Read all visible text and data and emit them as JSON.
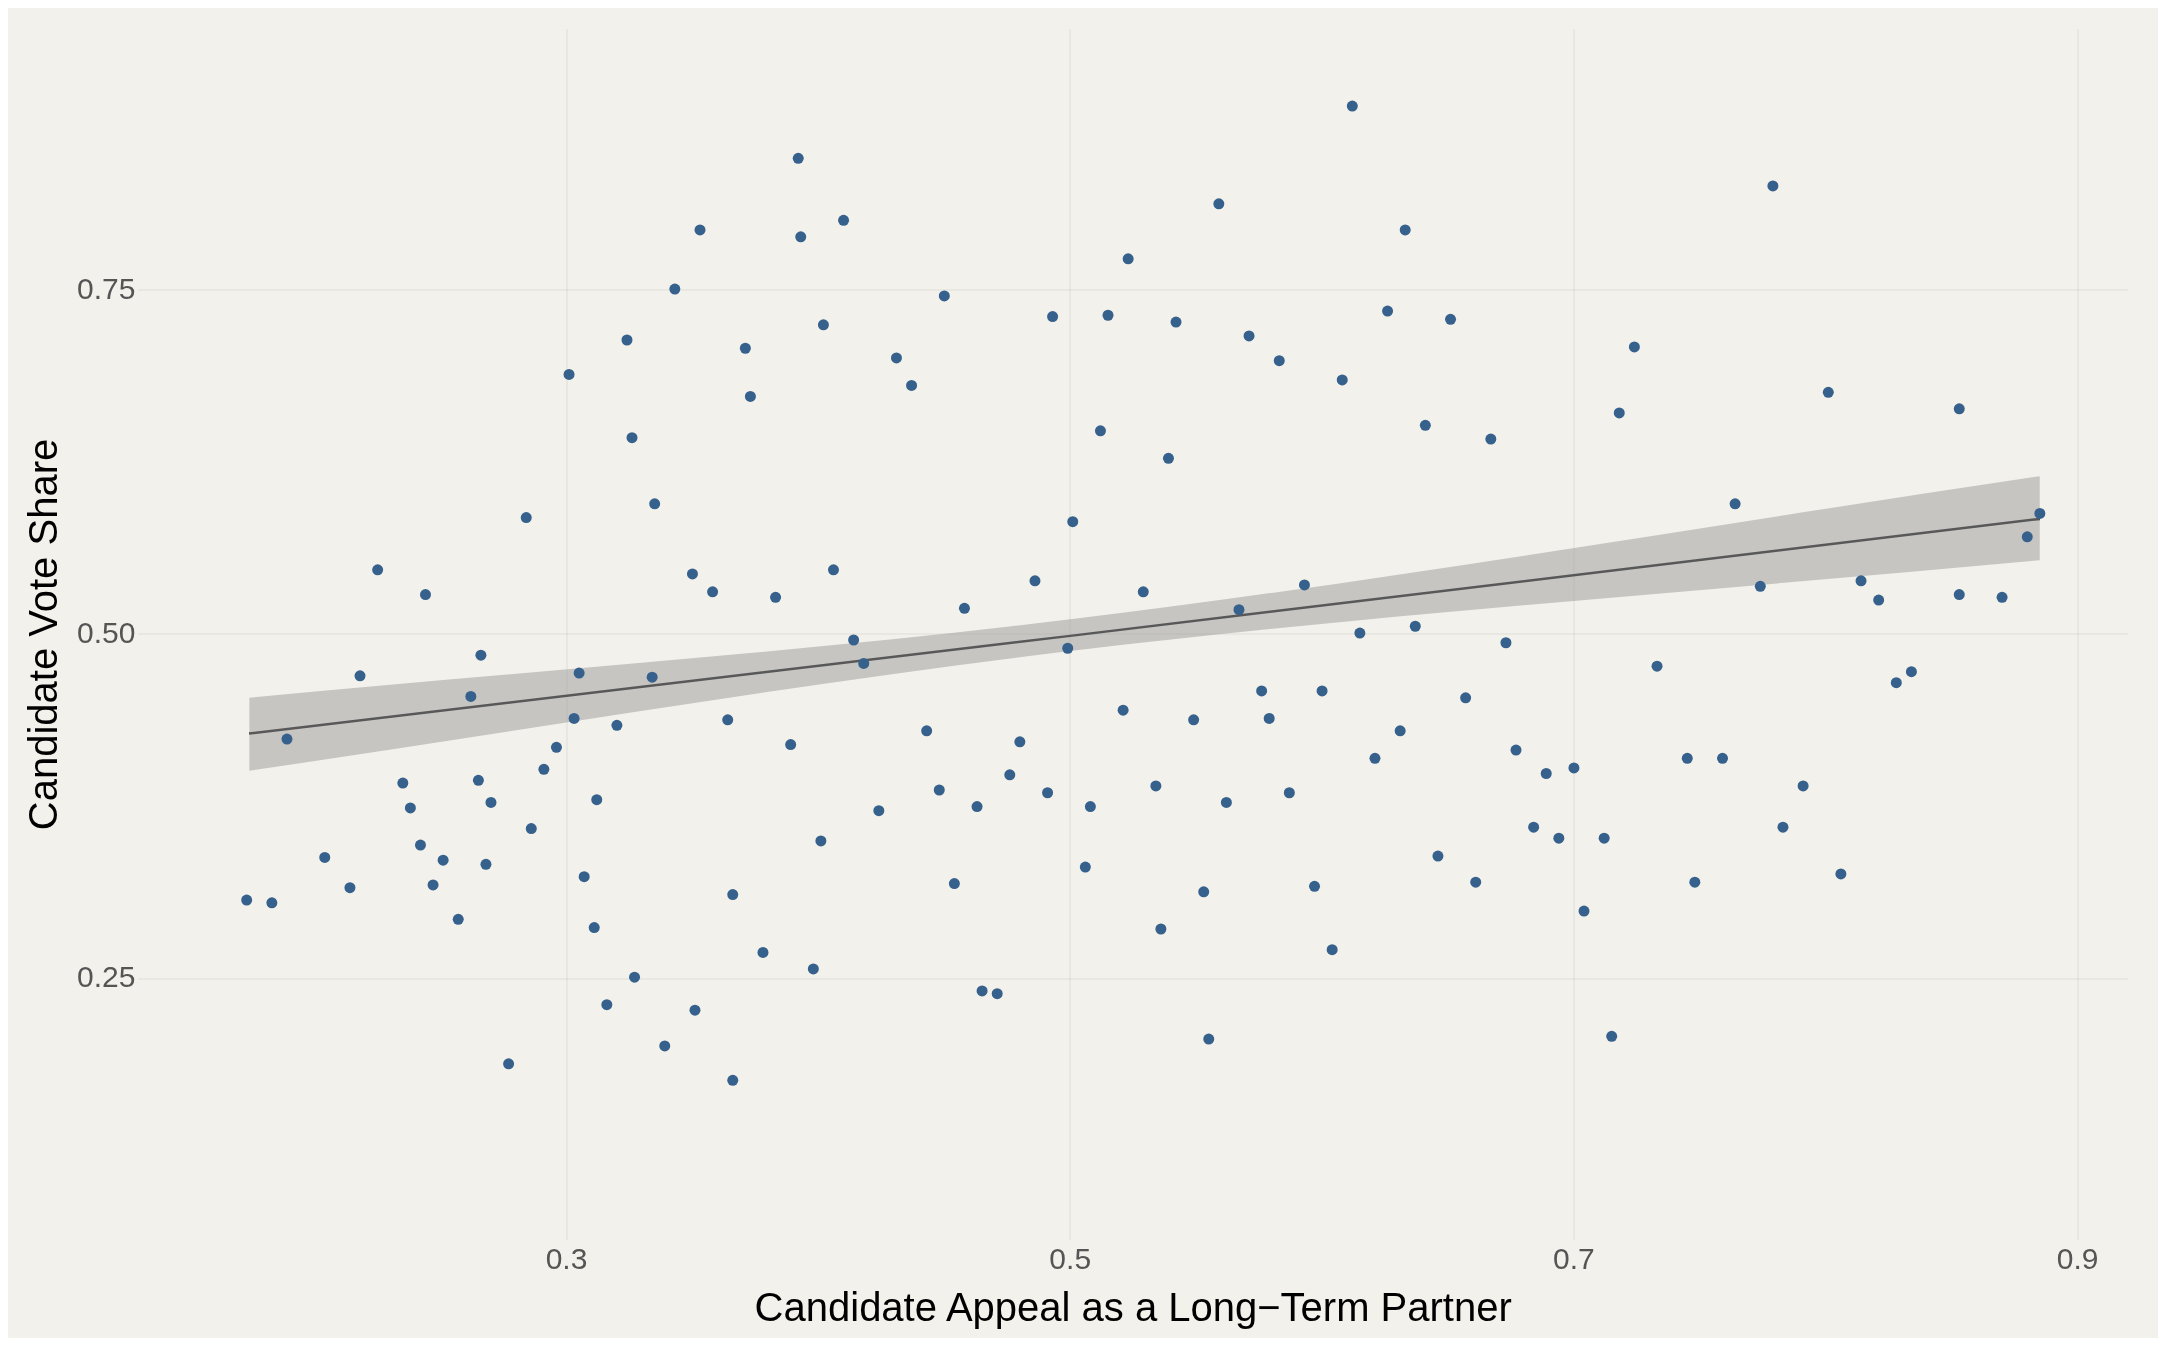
{
  "chart_data": {
    "type": "scatter",
    "xlabel": "Candidate Appeal as a Long−Term Partner",
    "ylabel": "Candidate Vote Share",
    "xlim": [
      0.13,
      0.92
    ],
    "ylim": [
      0.06,
      0.94
    ],
    "xticks": [
      0.3,
      0.5,
      0.7,
      0.9
    ],
    "yticks": [
      0.25,
      {
        "value": 0.5,
        "label": "0.50"
      },
      0.75
    ],
    "grid": true,
    "legend": false,
    "series": [
      {
        "type": "scatter",
        "marker": "circle",
        "color": "#36618c",
        "x": [
          0.173,
          0.183,
          0.189,
          0.204,
          0.214,
          0.218,
          0.225,
          0.235,
          0.238,
          0.242,
          0.244,
          0.247,
          0.251,
          0.257,
          0.262,
          0.265,
          0.266,
          0.268,
          0.27,
          0.277,
          0.284,
          0.286,
          0.291,
          0.296,
          0.301,
          0.303,
          0.305,
          0.307,
          0.311,
          0.312,
          0.316,
          0.32,
          0.324,
          0.326,
          0.327,
          0.334,
          0.335,
          0.339,
          0.343,
          0.35,
          0.351,
          0.353,
          0.358,
          0.364,
          0.366,
          0.366,
          0.371,
          0.373,
          0.378,
          0.383,
          0.389,
          0.392,
          0.393,
          0.398,
          0.401,
          0.402,
          0.406,
          0.41,
          0.414,
          0.418,
          0.424,
          0.431,
          0.437,
          0.443,
          0.448,
          0.45,
          0.454,
          0.458,
          0.463,
          0.465,
          0.471,
          0.476,
          0.48,
          0.486,
          0.491,
          0.493,
          0.499,
          0.501,
          0.506,
          0.508,
          0.512,
          0.515,
          0.521,
          0.523,
          0.529,
          0.534,
          0.536,
          0.539,
          0.542,
          0.549,
          0.553,
          0.555,
          0.559,
          0.562,
          0.567,
          0.571,
          0.576,
          0.579,
          0.583,
          0.587,
          0.593,
          0.597,
          0.6,
          0.604,
          0.608,
          0.612,
          0.615,
          0.621,
          0.626,
          0.631,
          0.633,
          0.637,
          0.641,
          0.646,
          0.651,
          0.657,
          0.661,
          0.667,
          0.673,
          0.677,
          0.684,
          0.689,
          0.694,
          0.7,
          0.704,
          0.712,
          0.715,
          0.718,
          0.724,
          0.733,
          0.745,
          0.748,
          0.759,
          0.764,
          0.774,
          0.779,
          0.783,
          0.791,
          0.801,
          0.806,
          0.814,
          0.821,
          0.828,
          0.834,
          0.853,
          0.853,
          0.87,
          0.88,
          0.885
        ],
        "values": [
          0.307,
          0.305,
          0.424,
          0.338,
          0.316,
          0.47,
          0.547,
          0.392,
          0.374,
          0.347,
          0.529,
          0.318,
          0.336,
          0.293,
          0.455,
          0.394,
          0.485,
          0.333,
          0.378,
          0.188,
          0.585,
          0.359,
          0.402,
          0.418,
          0.689,
          0.439,
          0.472,
          0.324,
          0.287,
          0.38,
          0.231,
          0.434,
          0.714,
          0.643,
          0.251,
          0.469,
          0.595,
          0.201,
          0.751,
          0.544,
          0.227,
          0.794,
          0.531,
          0.438,
          0.176,
          0.311,
          0.708,
          0.673,
          0.269,
          0.527,
          0.42,
          0.846,
          0.789,
          0.257,
          0.35,
          0.725,
          0.547,
          0.801,
          0.496,
          0.479,
          0.372,
          0.701,
          0.681,
          0.43,
          0.387,
          0.746,
          0.319,
          0.519,
          0.375,
          0.241,
          0.239,
          0.398,
          0.422,
          0.539,
          0.385,
          0.731,
          0.49,
          0.582,
          0.331,
          0.375,
          0.648,
          0.732,
          0.445,
          0.773,
          0.531,
          0.39,
          0.286,
          0.628,
          0.727,
          0.438,
          0.313,
          0.206,
          0.813,
          0.378,
          0.518,
          0.717,
          0.459,
          0.439,
          0.699,
          0.385,
          0.536,
          0.317,
          0.459,
          0.271,
          0.685,
          0.884,
          0.501,
          0.41,
          0.735,
          0.43,
          0.794,
          0.506,
          0.652,
          0.339,
          0.729,
          0.454,
          0.32,
          0.642,
          0.494,
          0.416,
          0.36,
          0.399,
          0.352,
          0.403,
          0.299,
          0.352,
          0.208,
          0.661,
          0.709,
          0.477,
          0.41,
          0.32,
          0.41,
          0.595,
          0.535,
          0.826,
          0.36,
          0.39,
          0.676,
          0.326,
          0.539,
          0.525,
          0.465,
          0.473,
          0.664,
          0.529,
          0.527,
          0.571,
          0.588
        ]
      },
      {
        "type": "line",
        "color": "#000000",
        "x": [
          0.174,
          0.5,
          0.885
        ],
        "values": [
          0.428,
          0.499,
          0.584
        ],
        "lower": [
          0.401,
          0.488,
          0.554
        ],
        "upper": [
          0.454,
          0.511,
          0.615
        ]
      }
    ]
  }
}
